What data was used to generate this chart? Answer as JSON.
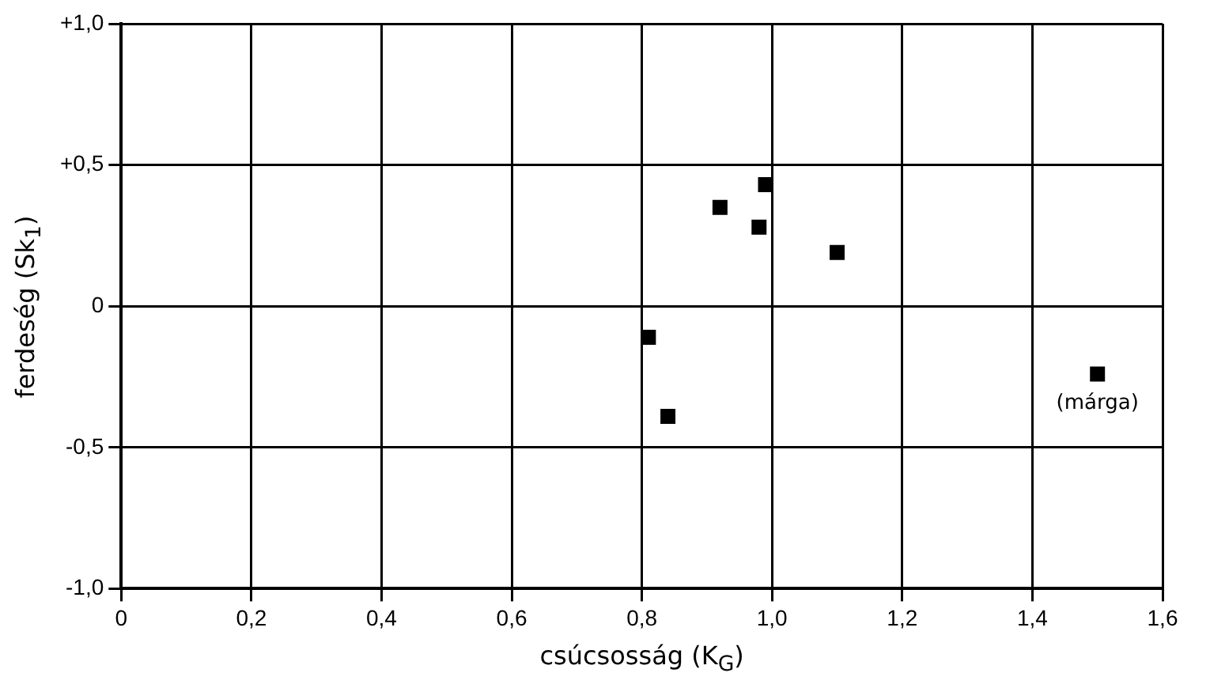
{
  "chart_data": {
    "type": "scatter",
    "xlabel": "csúcsosság (K$_{G}$)",
    "ylabel": "ferdeség (Sk$_{1}$)",
    "x": [
      0.81,
      0.84,
      0.92,
      0.98,
      0.99,
      1.1,
      1.5
    ],
    "series": [
      {
        "color": "#000000",
        "values": [
          -0.11,
          -0.39,
          0.35,
          0.28,
          0.43,
          0.19,
          -0.24
        ]
      }
    ],
    "annotations": [
      {
        "text": "(márga)",
        "x": 1.5,
        "y": -0.24
      }
    ],
    "xlim": [
      0,
      1.6
    ],
    "ylim": [
      -1,
      1
    ],
    "xticks": [
      0,
      {
        "value": 0.2,
        "label": "0,2"
      },
      {
        "value": 0.4,
        "label": "0,4"
      },
      {
        "value": 0.6,
        "label": "0,6"
      },
      {
        "value": 0.8,
        "label": "0,8"
      },
      {
        "value": 1,
        "label": "1,0"
      },
      {
        "value": 1.2,
        "label": "1,2"
      },
      {
        "value": 1.4,
        "label": "1,4"
      },
      {
        "value": 1.6,
        "label": "1,6"
      }
    ],
    "yticks": [
      {
        "value": -1,
        "label": "-1,0"
      },
      {
        "value": -0.5,
        "label": "-0,5"
      },
      0,
      {
        "value": 0.5,
        "label": "+0,5"
      },
      {
        "value": 1,
        "label": "+1,0"
      }
    ],
    "grid": true,
    "marker": "square",
    "legend": false
  }
}
